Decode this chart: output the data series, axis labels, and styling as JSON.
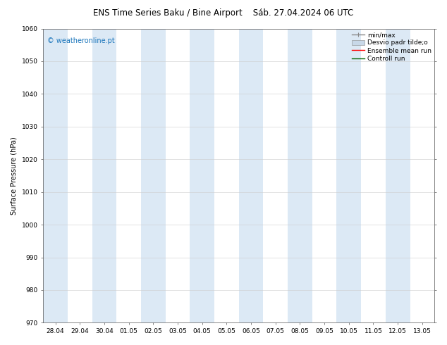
{
  "title": "ENS Time Series Baku / Bine Airport",
  "subtitle": "Sáb. 27.04.2024 06 UTC",
  "ylabel": "Surface Pressure (hPa)",
  "watermark": "© weatheronline.pt",
  "ylim": [
    970,
    1060
  ],
  "yticks": [
    970,
    980,
    990,
    1000,
    1010,
    1020,
    1030,
    1040,
    1050,
    1060
  ],
  "x_labels": [
    "28.04",
    "29.04",
    "30.04",
    "01.05",
    "02.05",
    "03.05",
    "04.05",
    "05.05",
    "06.05",
    "07.05",
    "08.05",
    "09.05",
    "10.05",
    "11.05",
    "12.05",
    "13.05"
  ],
  "x_values": [
    0,
    1,
    2,
    3,
    4,
    5,
    6,
    7,
    8,
    9,
    10,
    11,
    12,
    13,
    14,
    15
  ],
  "shaded_columns": [
    0,
    2,
    4,
    6,
    8,
    10,
    12,
    14
  ],
  "shade_color": "#dce9f5",
  "background_color": "#ffffff",
  "legend_items": [
    {
      "label": "min/max",
      "color": "#aaaaaa",
      "type": "line"
    },
    {
      "label": "Desvio padr tilde;o",
      "color": "#cccccc",
      "type": "fill"
    },
    {
      "label": "Ensemble mean run",
      "color": "#ff0000",
      "type": "line"
    },
    {
      "label": "Controll run",
      "color": "#008000",
      "type": "line"
    }
  ],
  "title_fontsize": 8.5,
  "subtitle_fontsize": 8.5,
  "axis_fontsize": 7,
  "tick_fontsize": 6.5,
  "watermark_fontsize": 7,
  "legend_fontsize": 6.5,
  "watermark_color": "#1a75bb",
  "title_color": "#000000",
  "spine_color": "#555555",
  "grid_color": "#cccccc"
}
